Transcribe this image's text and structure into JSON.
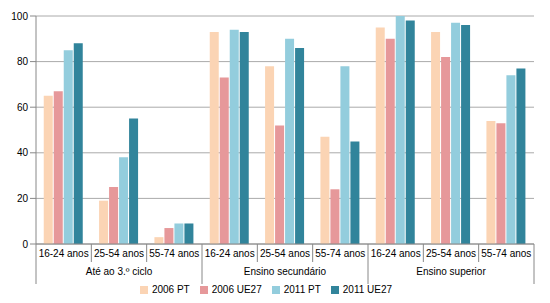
{
  "chart_data": {
    "type": "bar",
    "category_groups": [
      {
        "name": "Até ao 3.º ciclo",
        "categories": [
          "16-24 anos",
          "25-54 anos",
          "55-74 anos"
        ]
      },
      {
        "name": "Ensino secundário",
        "categories": [
          "16-24 anos",
          "25-54 anos",
          "55-74 anos"
        ]
      },
      {
        "name": "Ensino superior",
        "categories": [
          "16-24 anos",
          "25-54 anos",
          "55-74 anos"
        ]
      }
    ],
    "series": [
      {
        "name": "2006 PT",
        "color": "#fbd4b4",
        "values": [
          65,
          19,
          3,
          93,
          78,
          47,
          95,
          93,
          54
        ]
      },
      {
        "name": "2006 UE27",
        "color": "#e6989a",
        "values": [
          67,
          25,
          7,
          73,
          52,
          24,
          90,
          82,
          53
        ]
      },
      {
        "name": "2011 PT",
        "color": "#93cddd",
        "values": [
          85,
          38,
          9,
          94,
          90,
          78,
          100,
          97,
          74
        ]
      },
      {
        "name": "2011 UE27",
        "color": "#31849b",
        "values": [
          88,
          55,
          9,
          93,
          86,
          45,
          98,
          96,
          77
        ]
      }
    ],
    "ylim": [
      0,
      100
    ],
    "yticks": [
      0,
      20,
      40,
      60,
      80,
      100
    ],
    "grid": true,
    "legend": "bottom"
  }
}
